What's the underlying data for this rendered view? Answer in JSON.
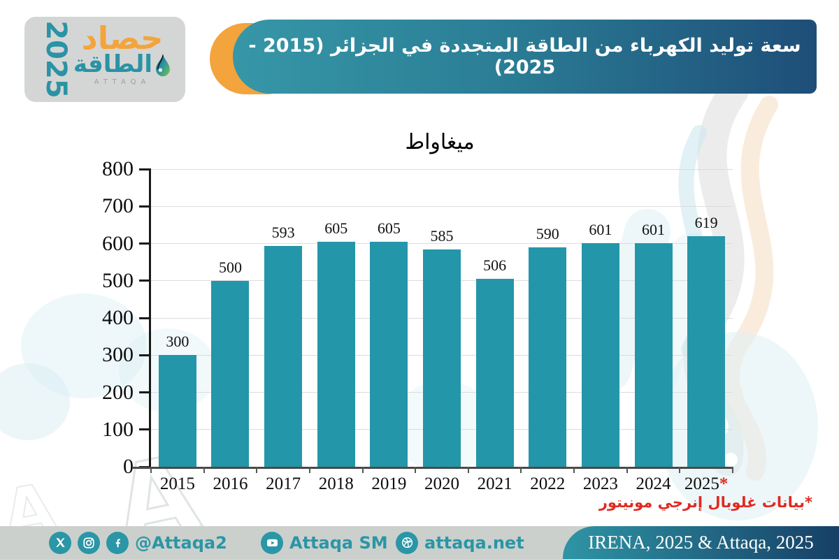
{
  "logo": {
    "year": "2025",
    "title_line1": "حصاد",
    "title_line2": "الطاقة",
    "latin": "ATTAQA"
  },
  "header": {
    "title": "سعة توليد الكهرباء من الطاقة المتجددة في الجزائر (2015 - 2025)"
  },
  "chart_data": {
    "type": "bar",
    "title": "ميغاواط",
    "categories": [
      "2015",
      "2016",
      "2017",
      "2018",
      "2019",
      "2020",
      "2021",
      "2022",
      "2023",
      "2024",
      "2025*"
    ],
    "values": [
      300,
      500,
      593,
      605,
      605,
      585,
      506,
      590,
      601,
      601,
      619
    ],
    "xlabel": "",
    "ylabel": "ميغاواط",
    "ylim": [
      0,
      800
    ],
    "yticks": [
      0,
      100,
      200,
      300,
      400,
      500,
      600,
      700,
      800
    ],
    "grid": true,
    "legend_position": "none",
    "bar_color": "#2496a9",
    "footnote": "*بيانات غلوبال إنرجي مونيتور",
    "footnote_marker_color": "#e02a21"
  },
  "footer": {
    "handle": "@Attaqa2",
    "youtube_label": "Attaqa SM",
    "website": "attaqa.net",
    "source": "IRENA, 2025 & Attaqa, 2025"
  },
  "colors": {
    "teal": "#2496a9",
    "orange": "#f3a43c",
    "header_gradient_start": "#3697a7",
    "header_gradient_end": "#1e4e78",
    "footer_bg": "#cbd0cd",
    "logo_bg": "#d4d6d5",
    "footnote_red": "#e02a21"
  }
}
